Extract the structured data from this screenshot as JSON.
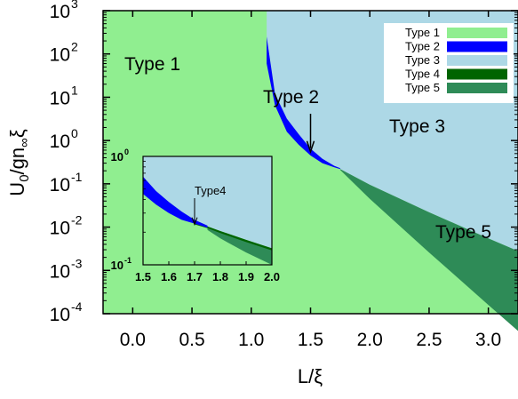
{
  "chart_data": {
    "type": "area",
    "xlabel": "L/ξ",
    "ylabel_parts": {
      "base": "U",
      "sub1": "0",
      "mid": "/gn",
      "sub2": "∞",
      "end": "ξ"
    },
    "xlim": [
      -0.25,
      3.25
    ],
    "ylim_exp": [
      -4,
      3
    ],
    "log_y": true,
    "x_ticks": [
      "0.0",
      "0.5",
      "1.0",
      "1.5",
      "2.0",
      "2.5",
      "3.0"
    ],
    "x_tick_values": [
      0.0,
      0.5,
      1.0,
      1.5,
      2.0,
      2.5,
      3.0
    ],
    "y_tick_exponents": [
      "-4",
      "-3",
      "-2",
      "-1",
      "0",
      "1",
      "2",
      "3"
    ],
    "y_tick_base": "10",
    "colors": {
      "type1": "#90ee90",
      "type2": "#0000ff",
      "type3": "#add8e6",
      "type4": "#006400",
      "type5": "#2e8b57"
    },
    "legend": {
      "placement": "top-right",
      "entries": [
        "Type 1",
        "Type 2",
        "Type 3",
        "Type 4",
        "Type 5"
      ]
    },
    "region_labels": {
      "type1": "Type 1",
      "type2": "Type 2",
      "type3": "Type 3",
      "type5": "Type 5"
    },
    "type1_boundary_x": 1.13,
    "type2_band": {
      "x": [
        1.13,
        1.2,
        1.3,
        1.4,
        1.5,
        1.6,
        1.7,
        1.75
      ],
      "y_upper": [
        250,
        12,
        3.2,
        1.4,
        0.65,
        0.38,
        0.26,
        0.23
      ],
      "y_lower": [
        60,
        6.5,
        1.6,
        0.8,
        0.45,
        0.3,
        0.24,
        0.22
      ]
    },
    "type5_band": {
      "x": [
        1.75,
        2.0,
        2.5,
        3.0,
        3.25
      ],
      "y_upper": [
        0.22,
        0.095,
        0.022,
        0.0055,
        0.0028
      ],
      "y_lower": [
        0.21,
        0.045,
        0.0026,
        0.00016,
        4e-05
      ]
    },
    "main_annotation": {
      "text": "Type 2",
      "arrow_to": [
        1.5,
        0.55
      ]
    },
    "inset": {
      "xlim": [
        1.5,
        2.0
      ],
      "ylim": [
        0.1,
        1.0
      ],
      "x_ticks": [
        "1.5",
        "1.6",
        "1.7",
        "1.8",
        "1.9",
        "2.0"
      ],
      "x_tick_values": [
        1.5,
        1.6,
        1.7,
        1.8,
        1.9,
        2.0
      ],
      "y_tick_exponents": [
        "-1",
        "0"
      ],
      "y_tick_base": "10",
      "type2_band": {
        "x": [
          1.5,
          1.55,
          1.6,
          1.65,
          1.7,
          1.75
        ],
        "y_upper": [
          0.65,
          0.48,
          0.38,
          0.31,
          0.26,
          0.23
        ],
        "y_lower": [
          0.45,
          0.36,
          0.3,
          0.26,
          0.24,
          0.22
        ]
      },
      "type4_band": {
        "x": [
          1.7,
          1.75,
          1.8,
          1.9,
          2.0
        ],
        "y_upper": [
          0.244,
          0.226,
          0.205,
          0.17,
          0.142
        ],
        "y_lower": [
          0.236,
          0.218,
          0.196,
          0.162,
          0.136
        ]
      },
      "type5_band": {
        "x": [
          1.75,
          1.8,
          1.9,
          2.0
        ],
        "y_upper": [
          0.22,
          0.2,
          0.165,
          0.138
        ],
        "y_lower": [
          0.21,
          0.175,
          0.13,
          0.1
        ]
      },
      "annotation": {
        "text": "Type4",
        "arrow_to": [
          1.7,
          0.235
        ]
      }
    }
  }
}
